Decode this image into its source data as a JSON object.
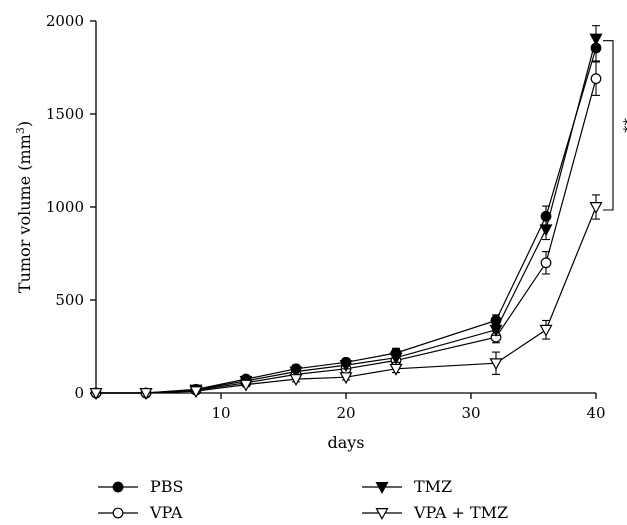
{
  "chart_data": {
    "type": "line",
    "title": "",
    "xlabel": "days",
    "ylabel": "Tumor volume (mm",
    "ylabel_sup": "3",
    "ylabel_close": ")",
    "xlim": [
      0,
      40
    ],
    "ylim": [
      0,
      2000
    ],
    "xticks": [
      10,
      20,
      30,
      40
    ],
    "xtick_labels": [
      "10",
      "20",
      "30",
      "40"
    ],
    "yticks": [
      0,
      500,
      1000,
      1500,
      2000
    ],
    "ytick_labels": [
      "0",
      "500",
      "1000",
      "1500",
      "2000"
    ],
    "grid": false,
    "legend_position": "bottom",
    "significance_label": "**",
    "x": [
      0,
      4,
      8,
      12,
      16,
      20,
      24,
      32,
      36,
      40
    ],
    "series": [
      {
        "name": "PBS",
        "marker": "filled-circle",
        "values": [
          0,
          0,
          20,
          75,
          130,
          165,
          215,
          390,
          950,
          1855
        ],
        "errors": [
          0,
          0,
          8,
          15,
          20,
          20,
          25,
          30,
          55,
          70
        ]
      },
      {
        "name": "VPA",
        "marker": "open-circle",
        "values": [
          0,
          0,
          15,
          55,
          100,
          130,
          175,
          300,
          700,
          1690
        ],
        "errors": [
          0,
          0,
          5,
          10,
          15,
          20,
          20,
          30,
          60,
          90
        ]
      },
      {
        "name": "TMZ",
        "marker": "filled-triangle-down",
        "values": [
          0,
          0,
          18,
          65,
          115,
          150,
          190,
          340,
          880,
          1905
        ],
        "errors": [
          0,
          0,
          6,
          12,
          18,
          20,
          25,
          30,
          55,
          70
        ]
      },
      {
        "name": "VPA + TMZ",
        "marker": "open-triangle-down",
        "values": [
          0,
          0,
          10,
          45,
          75,
          85,
          130,
          160,
          340,
          1000
        ],
        "errors": [
          0,
          0,
          5,
          10,
          15,
          15,
          20,
          60,
          50,
          65
        ]
      }
    ]
  }
}
